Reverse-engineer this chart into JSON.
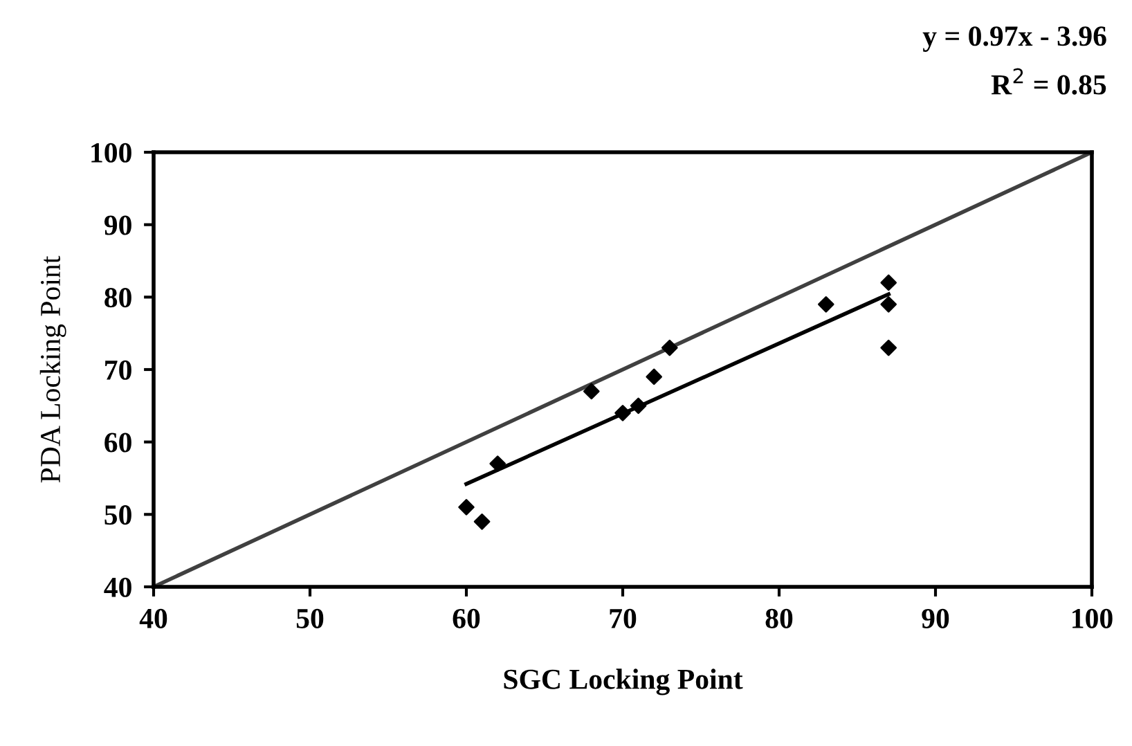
{
  "chart_data": {
    "type": "scatter",
    "xlabel": "SGC Locking Point",
    "ylabel": "PDA Locking Point",
    "annotations": [
      "y = 0.97x - 3.96",
      "R$^{2}$ = 0.85"
    ],
    "series": [
      {
        "color": "#000000",
        "marker": "diamond",
        "x": [
          60,
          61,
          62,
          68,
          70,
          71,
          72,
          73,
          83,
          87,
          87,
          87
        ],
        "values": [
          51,
          49,
          57,
          67,
          64,
          65,
          69,
          73,
          79,
          82,
          79,
          73
        ]
      },
      {
        "type": "line",
        "color": "#000000",
        "x": [
          60,
          87
        ],
        "values": [
          54.2,
          80.4
        ]
      },
      {
        "type": "line",
        "color": "#404040",
        "x": [
          40,
          100
        ],
        "values": [
          40,
          100
        ]
      }
    ],
    "xlim": [
      40,
      100
    ],
    "ylim": [
      40,
      100
    ],
    "xticks": [
      40,
      50,
      60,
      70,
      80,
      90,
      100
    ],
    "yticks": [
      40,
      50,
      60,
      70,
      80,
      90,
      100
    ],
    "grid": false,
    "legend": false
  }
}
